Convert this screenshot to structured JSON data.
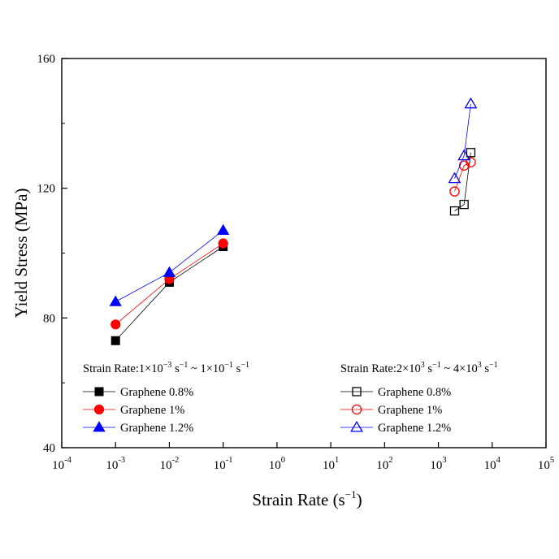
{
  "chart_data": {
    "type": "scatter",
    "xlabel": "Strain Rate (s",
    "xlabel_sup": "−1",
    "xlabel_end": ")",
    "ylabel": "Yield Stress (MPa)",
    "xscale": "log",
    "xlim": [
      0.0001,
      100000
    ],
    "ylim": [
      40,
      160
    ],
    "x_ticks": [
      {
        "base": "10",
        "exp": "-4",
        "value": 0.0001
      },
      {
        "base": "10",
        "exp": "-3",
        "value": 0.001
      },
      {
        "base": "10",
        "exp": "-2",
        "value": 0.01
      },
      {
        "base": "10",
        "exp": "-1",
        "value": 0.1
      },
      {
        "base": "10",
        "exp": "0",
        "value": 1
      },
      {
        "base": "10",
        "exp": "1",
        "value": 10
      },
      {
        "base": "10",
        "exp": "2",
        "value": 100
      },
      {
        "base": "10",
        "exp": "3",
        "value": 1000
      },
      {
        "base": "10",
        "exp": "4",
        "value": 10000
      },
      {
        "base": "10",
        "exp": "5",
        "value": 100000
      }
    ],
    "y_ticks": [
      40,
      80,
      120,
      160
    ],
    "legend_groups": [
      {
        "title_parts": [
          {
            "t": "Strain Rate:1×10"
          },
          {
            "t": "−3",
            "sup": true
          },
          {
            "t": " s"
          },
          {
            "t": "−1",
            "sup": true
          },
          {
            "t": " ~ 1×10"
          },
          {
            "t": "−1",
            "sup": true
          },
          {
            "t": " s"
          },
          {
            "t": "−1",
            "sup": true
          }
        ],
        "placement": "bottom-left",
        "series": [
          0,
          1,
          2
        ]
      },
      {
        "title_parts": [
          {
            "t": "Strain Rate:2×10"
          },
          {
            "t": "3",
            "sup": true
          },
          {
            "t": " s"
          },
          {
            "t": "−1",
            "sup": true
          },
          {
            "t": " ~ 4×10"
          },
          {
            "t": "3",
            "sup": true
          },
          {
            "t": " s"
          },
          {
            "t": "−1",
            "sup": true
          }
        ],
        "placement": "bottom-right",
        "series": [
          3,
          4,
          5
        ]
      }
    ],
    "series": [
      {
        "name": "Graphene 0.8%",
        "marker": "square",
        "filled": true,
        "color": "#000000",
        "x": [
          0.001,
          0.01,
          0.1
        ],
        "y": [
          73,
          91,
          102
        ]
      },
      {
        "name": "Graphene 1%",
        "marker": "circle",
        "filled": true,
        "color": "#ff0000",
        "x": [
          0.001,
          0.01,
          0.1
        ],
        "y": [
          78,
          92,
          103
        ]
      },
      {
        "name": "Graphene 1.2%",
        "marker": "triangle",
        "filled": true,
        "color": "#0000ff",
        "x": [
          0.001,
          0.01,
          0.1
        ],
        "y": [
          85,
          94,
          107
        ]
      },
      {
        "name": "Graphene 0.8%",
        "marker": "square",
        "filled": false,
        "color": "#000000",
        "x": [
          2000,
          3000,
          4000
        ],
        "y": [
          113,
          115,
          131
        ]
      },
      {
        "name": "Graphene 1%",
        "marker": "circle",
        "filled": false,
        "color": "#ff0000",
        "x": [
          2000,
          3000,
          4000
        ],
        "y": [
          119,
          127,
          128
        ]
      },
      {
        "name": "Graphene 1.2%",
        "marker": "triangle",
        "filled": false,
        "color": "#0000ff",
        "x": [
          2000,
          3000,
          4000
        ],
        "y": [
          123,
          130,
          146
        ]
      }
    ],
    "grid": false
  }
}
